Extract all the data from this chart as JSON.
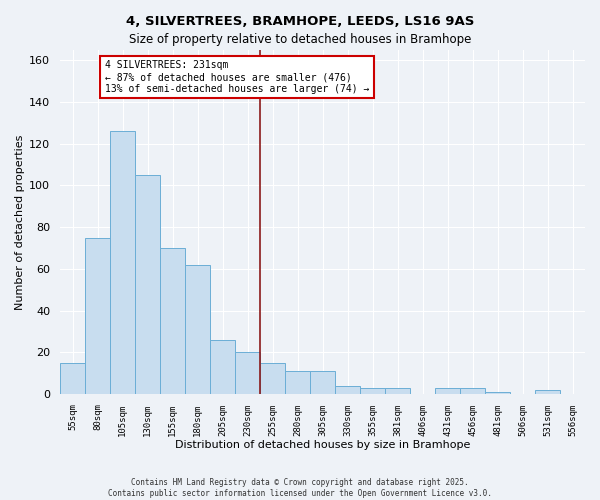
{
  "title": "4, SILVERTREES, BRAMHOPE, LEEDS, LS16 9AS",
  "subtitle": "Size of property relative to detached houses in Bramhope",
  "xlabel": "Distribution of detached houses by size in Bramhope",
  "ylabel": "Number of detached properties",
  "bar_labels": [
    "55sqm",
    "80sqm",
    "105sqm",
    "130sqm",
    "155sqm",
    "180sqm",
    "205sqm",
    "230sqm",
    "255sqm",
    "280sqm",
    "305sqm",
    "330sqm",
    "355sqm",
    "381sqm",
    "406sqm",
    "431sqm",
    "456sqm",
    "481sqm",
    "506sqm",
    "531sqm",
    "556sqm"
  ],
  "bar_values": [
    15,
    75,
    126,
    105,
    70,
    62,
    26,
    20,
    15,
    11,
    11,
    4,
    3,
    3,
    0,
    3,
    3,
    1,
    0,
    2,
    0
  ],
  "bar_color": "#c8ddef",
  "bar_edge_color": "#6baed6",
  "ylim": [
    0,
    165
  ],
  "yticks": [
    0,
    20,
    40,
    60,
    80,
    100,
    120,
    140,
    160
  ],
  "vline_x": 7.5,
  "vline_color": "#8b1a1a",
  "annotation_title": "4 SILVERTREES: 231sqm",
  "annotation_line1": "← 87% of detached houses are smaller (476)",
  "annotation_line2": "13% of semi-detached houses are larger (74) →",
  "annotation_box_color": "#ffffff",
  "annotation_box_edge": "#cc0000",
  "footnote1": "Contains HM Land Registry data © Crown copyright and database right 2025.",
  "footnote2": "Contains public sector information licensed under the Open Government Licence v3.0.",
  "bg_color": "#eef2f7"
}
